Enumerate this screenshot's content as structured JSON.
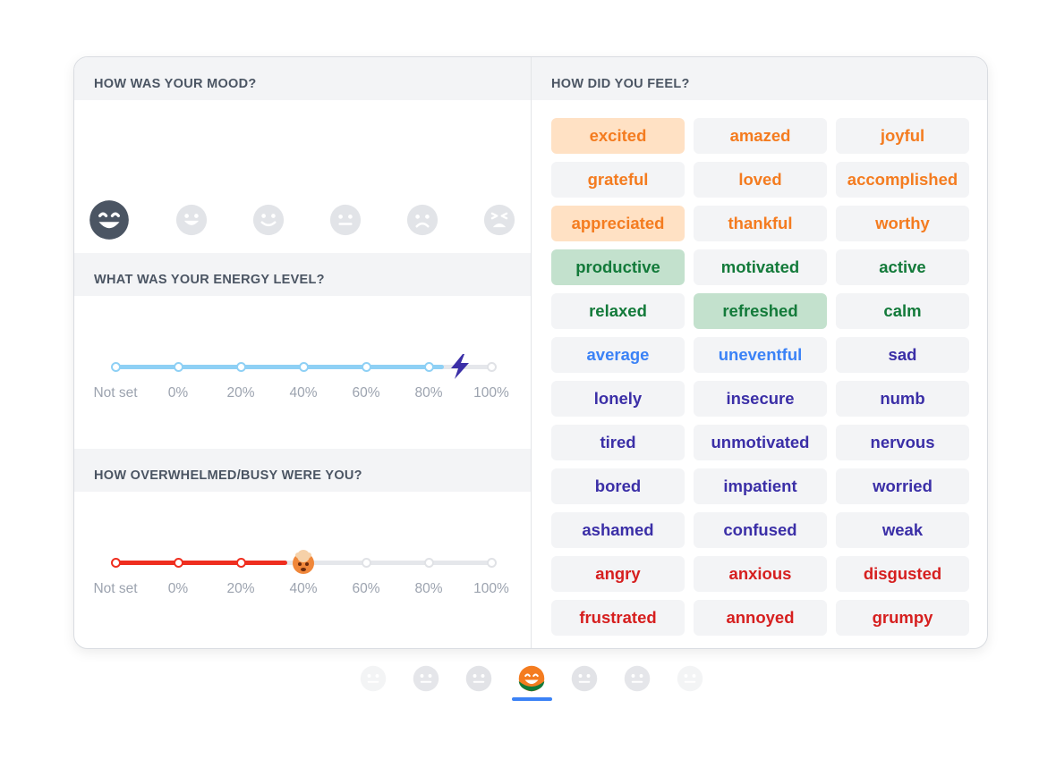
{
  "mood": {
    "title": "HOW WAS YOUR MOOD?",
    "options": [
      {
        "icon": "laughing-face-icon",
        "selected": true
      },
      {
        "icon": "grinning-face-icon",
        "selected": false
      },
      {
        "icon": "smiling-face-icon",
        "selected": false
      },
      {
        "icon": "neutral-face-icon",
        "selected": false
      },
      {
        "icon": "sad-face-icon",
        "selected": false
      },
      {
        "icon": "tired-face-icon",
        "selected": false
      }
    ]
  },
  "energy": {
    "title": "WHAT WAS YOUR ENERGY LEVEL?",
    "ticks": [
      "Not set",
      "0%",
      "20%",
      "40%",
      "60%",
      "80%",
      "100%"
    ],
    "value_percent": 90,
    "handle_icon": "lightning-bolt-icon",
    "color": "#8ed0f5"
  },
  "busy": {
    "title": "HOW OVERWHELMED/BUSY WERE YOU?",
    "ticks": [
      "Not set",
      "0%",
      "20%",
      "40%",
      "60%",
      "80%",
      "100%"
    ],
    "value_percent": 40,
    "handle_icon": "exploding-head-icon",
    "color": "#ef2e1f"
  },
  "feelings": {
    "title": "HOW DID YOU FEEL?",
    "items": [
      {
        "label": "excited",
        "tone": "orange",
        "selected": true
      },
      {
        "label": "amazed",
        "tone": "orange",
        "selected": false
      },
      {
        "label": "joyful",
        "tone": "orange",
        "selected": false
      },
      {
        "label": "grateful",
        "tone": "orange",
        "selected": false
      },
      {
        "label": "loved",
        "tone": "orange",
        "selected": false
      },
      {
        "label": "accomplished",
        "tone": "orange",
        "selected": false
      },
      {
        "label": "appreciated",
        "tone": "orange",
        "selected": true
      },
      {
        "label": "thankful",
        "tone": "orange",
        "selected": false
      },
      {
        "label": "worthy",
        "tone": "orange",
        "selected": false
      },
      {
        "label": "productive",
        "tone": "green",
        "selected": true
      },
      {
        "label": "motivated",
        "tone": "green",
        "selected": false
      },
      {
        "label": "active",
        "tone": "green",
        "selected": false
      },
      {
        "label": "relaxed",
        "tone": "green",
        "selected": false
      },
      {
        "label": "refreshed",
        "tone": "green",
        "selected": true
      },
      {
        "label": "calm",
        "tone": "green",
        "selected": false
      },
      {
        "label": "average",
        "tone": "blue",
        "selected": false
      },
      {
        "label": "uneventful",
        "tone": "blue",
        "selected": false
      },
      {
        "label": "sad",
        "tone": "purple",
        "selected": false
      },
      {
        "label": "lonely",
        "tone": "purple",
        "selected": false
      },
      {
        "label": "insecure",
        "tone": "purple",
        "selected": false
      },
      {
        "label": "numb",
        "tone": "purple",
        "selected": false
      },
      {
        "label": "tired",
        "tone": "purple",
        "selected": false
      },
      {
        "label": "unmotivated",
        "tone": "purple",
        "selected": false
      },
      {
        "label": "nervous",
        "tone": "purple",
        "selected": false
      },
      {
        "label": "bored",
        "tone": "purple",
        "selected": false
      },
      {
        "label": "impatient",
        "tone": "purple",
        "selected": false
      },
      {
        "label": "worried",
        "tone": "purple",
        "selected": false
      },
      {
        "label": "ashamed",
        "tone": "purple",
        "selected": false
      },
      {
        "label": "confused",
        "tone": "purple",
        "selected": false
      },
      {
        "label": "weak",
        "tone": "purple",
        "selected": false
      },
      {
        "label": "angry",
        "tone": "red",
        "selected": false
      },
      {
        "label": "anxious",
        "tone": "red",
        "selected": false
      },
      {
        "label": "disgusted",
        "tone": "red",
        "selected": false
      },
      {
        "label": "frustrated",
        "tone": "red",
        "selected": false
      },
      {
        "label": "annoyed",
        "tone": "red",
        "selected": false
      },
      {
        "label": "grumpy",
        "tone": "red",
        "selected": false
      }
    ]
  },
  "day_selector": {
    "days": [
      {
        "icon": "neutral-face-icon",
        "active": false
      },
      {
        "icon": "neutral-face-icon",
        "active": false
      },
      {
        "icon": "neutral-face-icon",
        "active": false
      },
      {
        "icon": "laughing-face-icon",
        "active": true
      },
      {
        "icon": "neutral-face-icon",
        "active": false
      },
      {
        "icon": "neutral-face-icon",
        "active": false
      },
      {
        "icon": "neutral-face-icon",
        "active": false
      }
    ]
  }
}
